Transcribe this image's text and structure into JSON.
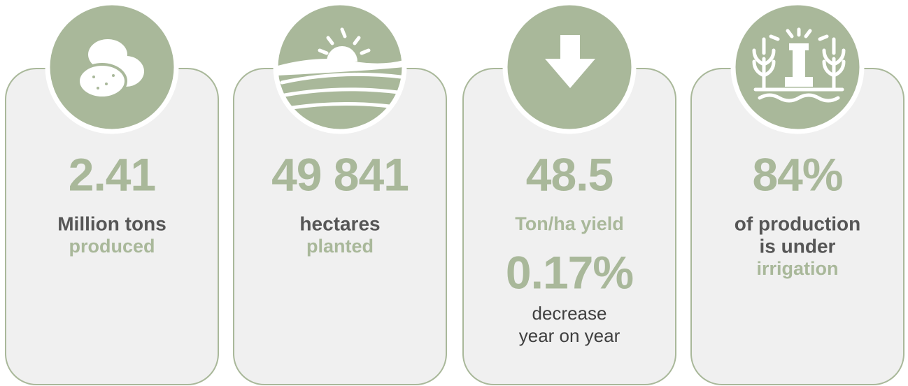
{
  "cards": [
    {
      "items": [
        {
          "text": "2.41",
          "style": "big"
        },
        {
          "text": "Million tons",
          "style": "bold-dark"
        },
        {
          "text": "produced",
          "style": "bold-green"
        }
      ]
    },
    {
      "items": [
        {
          "text": "49 841",
          "style": "big"
        },
        {
          "text": "hectares",
          "style": "bold-dark"
        },
        {
          "text": "planted",
          "style": "bold-green"
        }
      ]
    },
    {
      "items": [
        {
          "text": "48.5",
          "style": "big"
        },
        {
          "text": "Ton/ha yield",
          "style": "bold-green"
        },
        {
          "text": "0.17%",
          "style": "big"
        },
        {
          "text": "decrease",
          "style": "regular"
        },
        {
          "text": "year on year",
          "style": "regular"
        }
      ]
    },
    {
      "items": [
        {
          "text": "84%",
          "style": "big"
        },
        {
          "text": "of production",
          "style": "bold-dark"
        },
        {
          "text": "is under",
          "style": "bold-dark"
        },
        {
          "text": "irrigation",
          "style": "bold-green"
        }
      ]
    }
  ]
}
